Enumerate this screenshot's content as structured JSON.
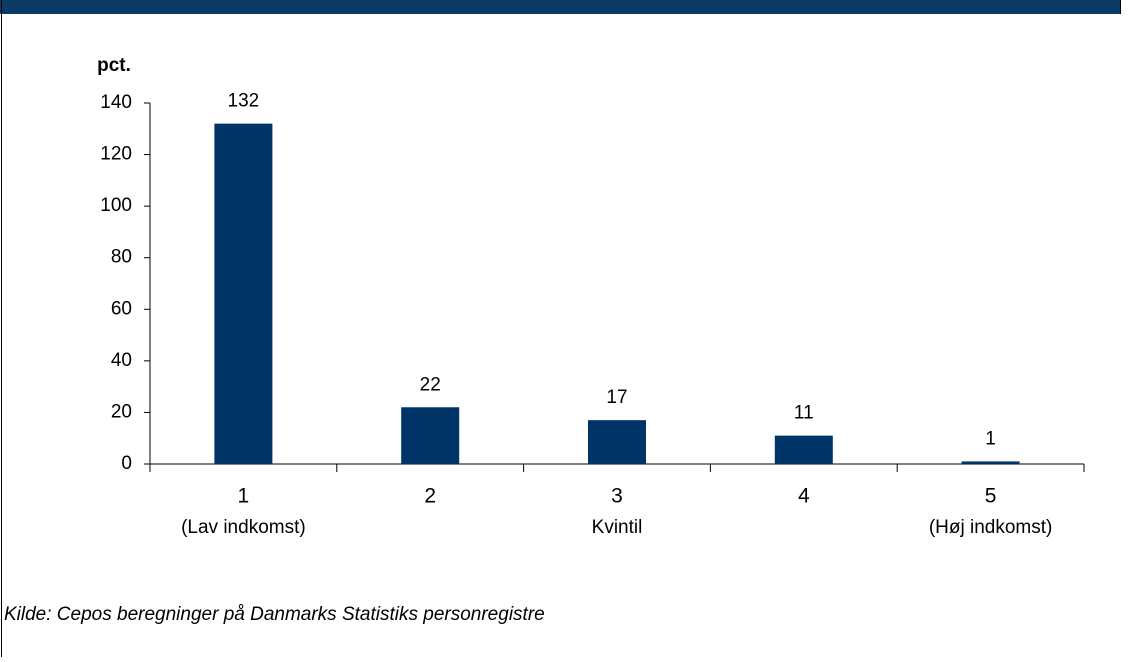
{
  "chart_data": {
    "type": "bar",
    "y_label": "pct.",
    "x_label": "Kvintil",
    "categories": [
      "1",
      "2",
      "3",
      "4",
      "5"
    ],
    "category_notes": [
      "(Lav indkomst)",
      null,
      null,
      null,
      "(Høj indkomst)"
    ],
    "values": [
      132,
      22,
      17,
      11,
      1
    ],
    "color": "#003466",
    "ylim": [
      0,
      140
    ],
    "yticks": [
      0,
      20,
      40,
      60,
      80,
      100,
      120,
      140
    ],
    "source": "Kilde: Cepos beregninger på Danmarks Statistiks personregistre"
  }
}
